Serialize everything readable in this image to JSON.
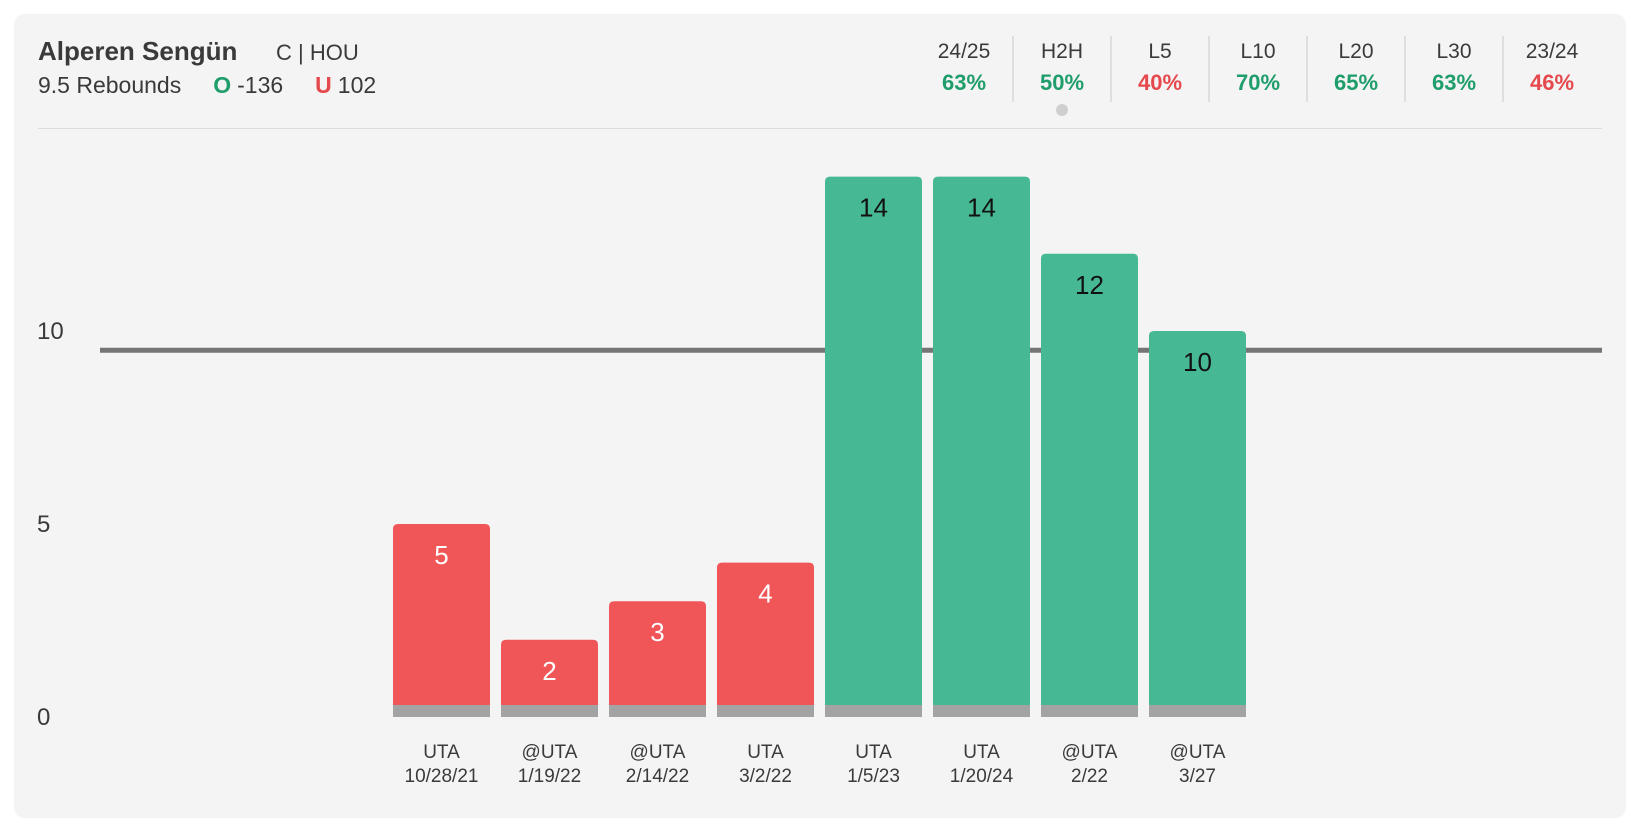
{
  "player": {
    "name": "Alperen Sengün",
    "position_team": "C | HOU",
    "prop": "9.5 Rebounds",
    "over_mark": "O",
    "over_odds": "-136",
    "under_mark": "U",
    "under_odds": "102"
  },
  "stats": [
    {
      "label": "24/25",
      "value": "63%",
      "status": "good"
    },
    {
      "label": "H2H",
      "value": "50%",
      "status": "good",
      "selected": true
    },
    {
      "label": "L5",
      "value": "40%",
      "status": "bad"
    },
    {
      "label": "L10",
      "value": "70%",
      "status": "good"
    },
    {
      "label": "L20",
      "value": "65%",
      "status": "good"
    },
    {
      "label": "L30",
      "value": "63%",
      "status": "good"
    },
    {
      "label": "23/24",
      "value": "46%",
      "status": "bad"
    }
  ],
  "colors": {
    "over": "#47b894",
    "under": "#f05558",
    "base": "#a3a3a3",
    "line": "#757575",
    "good_text": "#1f9d6b",
    "bad_text": "#e5484d"
  },
  "chart_data": {
    "type": "bar",
    "categories": [
      [
        "UTA",
        "10/28/21"
      ],
      [
        "@UTA",
        "1/19/22"
      ],
      [
        "@UTA",
        "2/14/22"
      ],
      [
        "UTA",
        "3/2/22"
      ],
      [
        "UTA",
        "1/5/23"
      ],
      [
        "UTA",
        "1/20/24"
      ],
      [
        "@UTA",
        "2/22"
      ],
      [
        "@UTA",
        "3/27"
      ]
    ],
    "values": [
      5,
      2,
      3,
      4,
      14,
      14,
      12,
      10
    ],
    "threshold": 9.5,
    "yticks": [
      0,
      5,
      10
    ],
    "ylim": [
      0,
      14.5
    ]
  }
}
